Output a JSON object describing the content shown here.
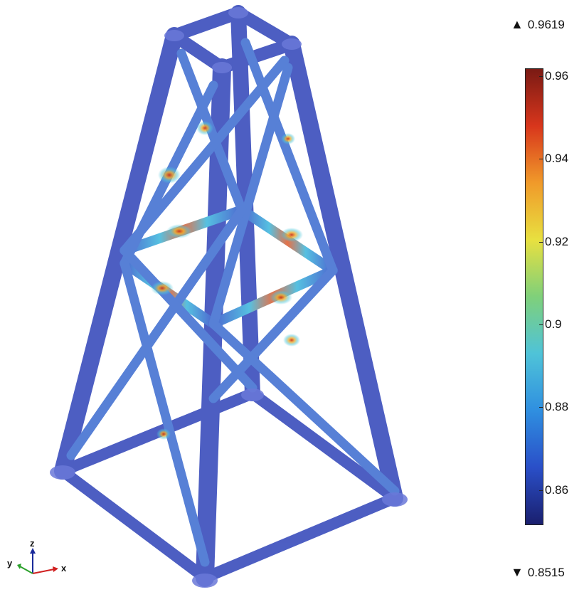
{
  "legend": {
    "max_value": "0.9619",
    "min_value": "0.8515",
    "ticks": [
      "0.96",
      "0.94",
      "0.92",
      "0.9",
      "0.88",
      "0.86"
    ],
    "range": [
      0.8515,
      0.9619
    ],
    "colormap": [
      "#1a1f6e",
      "#2a4fc8",
      "#2f8fe0",
      "#4fc3d8",
      "#7fd07a",
      "#e8e040",
      "#f09a2a",
      "#d8361c",
      "#7a1a14"
    ]
  },
  "axes": {
    "x": "x",
    "y": "y",
    "z": "z"
  },
  "colors": {
    "member": "#2e43b8",
    "member_dark": "#1f2f8c",
    "hotspot": "#e0402a"
  }
}
